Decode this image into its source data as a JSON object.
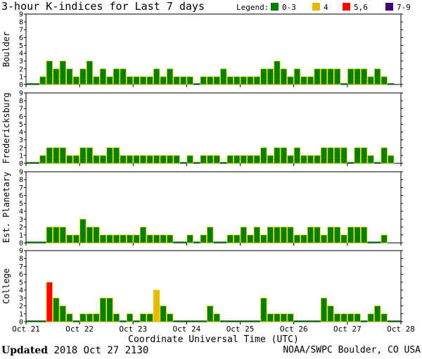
{
  "header": {
    "title": "3-hour K-indices for Last 7 days",
    "legend_label": "Legend:",
    "legend": [
      {
        "label": "0-3",
        "color": "#008000"
      },
      {
        "label": "4",
        "color": "#e8b800"
      },
      {
        "label": "5,6",
        "color": "#ff0000"
      },
      {
        "label": "7-9",
        "color": "#400080"
      }
    ]
  },
  "footer": {
    "updated_label": "Updated",
    "updated_value": "2018 Oct 27 2130",
    "credit": "NOAA/SWPC Boulder, CO USA"
  },
  "chart_data": [
    {
      "type": "bar",
      "title": "Boulder",
      "ylim": [
        0,
        9
      ],
      "yticks": [
        0,
        1,
        2,
        3,
        4,
        5,
        6,
        7,
        8,
        9
      ],
      "values": [
        0,
        0,
        1,
        3,
        2,
        3,
        2,
        1,
        2,
        3,
        1,
        2,
        1,
        2,
        2,
        1,
        1,
        1,
        1,
        2,
        1,
        2,
        1,
        1,
        1,
        0,
        1,
        1,
        1,
        2,
        1,
        1,
        1,
        1,
        1,
        2,
        2,
        3,
        2,
        1,
        2,
        1,
        1,
        2,
        2,
        2,
        2,
        0,
        2,
        2,
        2,
        1,
        2,
        1,
        0,
        null
      ]
    },
    {
      "type": "bar",
      "title": "Fredericksburg",
      "ylim": [
        0,
        9
      ],
      "yticks": [
        0,
        1,
        2,
        3,
        4,
        5,
        6,
        7,
        8,
        9
      ],
      "values": [
        0,
        0,
        1,
        2,
        2,
        2,
        1,
        1,
        2,
        2,
        1,
        1,
        2,
        2,
        1,
        1,
        1,
        1,
        1,
        1,
        1,
        1,
        1,
        0,
        1,
        0,
        1,
        1,
        1,
        0,
        1,
        1,
        1,
        1,
        1,
        2,
        1,
        2,
        2,
        1,
        2,
        1,
        1,
        1,
        2,
        2,
        2,
        2,
        0,
        2,
        2,
        1,
        0,
        2,
        1,
        null
      ]
    },
    {
      "type": "bar",
      "title": "Est. Planetary",
      "ylim": [
        0,
        9
      ],
      "yticks": [
        0,
        1,
        2,
        3,
        4,
        5,
        6,
        7,
        8,
        9
      ],
      "values": [
        0,
        0,
        0,
        2,
        2,
        2,
        1,
        1,
        3,
        2,
        2,
        1,
        1,
        1,
        1,
        1,
        1,
        2,
        1,
        1,
        1,
        1,
        0,
        0,
        1,
        0,
        1,
        2,
        0,
        0,
        1,
        1,
        2,
        1,
        2,
        1,
        2,
        2,
        2,
        2,
        1,
        1,
        2,
        2,
        1,
        2,
        2,
        1,
        2,
        2,
        2,
        0,
        0,
        1,
        null,
        null
      ]
    },
    {
      "type": "bar",
      "title": "College",
      "ylim": [
        0,
        9
      ],
      "yticks": [
        0,
        1,
        2,
        3,
        4,
        5,
        6,
        7,
        8,
        9
      ],
      "values": [
        0,
        0,
        0,
        5,
        3,
        2,
        1,
        0,
        1,
        1,
        1,
        3,
        3,
        1,
        0,
        1,
        0,
        1,
        1,
        4,
        2,
        1,
        0,
        0,
        0,
        0,
        0,
        2,
        1,
        0,
        0,
        0,
        0,
        0,
        0,
        3,
        1,
        1,
        1,
        1,
        0,
        0,
        0,
        0,
        3,
        2,
        1,
        1,
        1,
        1,
        0,
        1,
        2,
        1,
        0,
        0
      ]
    }
  ],
  "x_axis": {
    "label": "Coordinate Universal Time (UTC)",
    "ticks": [
      "Oct 21",
      "Oct 22",
      "Oct 23",
      "Oct 24",
      "Oct 25",
      "Oct 26",
      "Oct 27",
      "Oct 28"
    ]
  }
}
